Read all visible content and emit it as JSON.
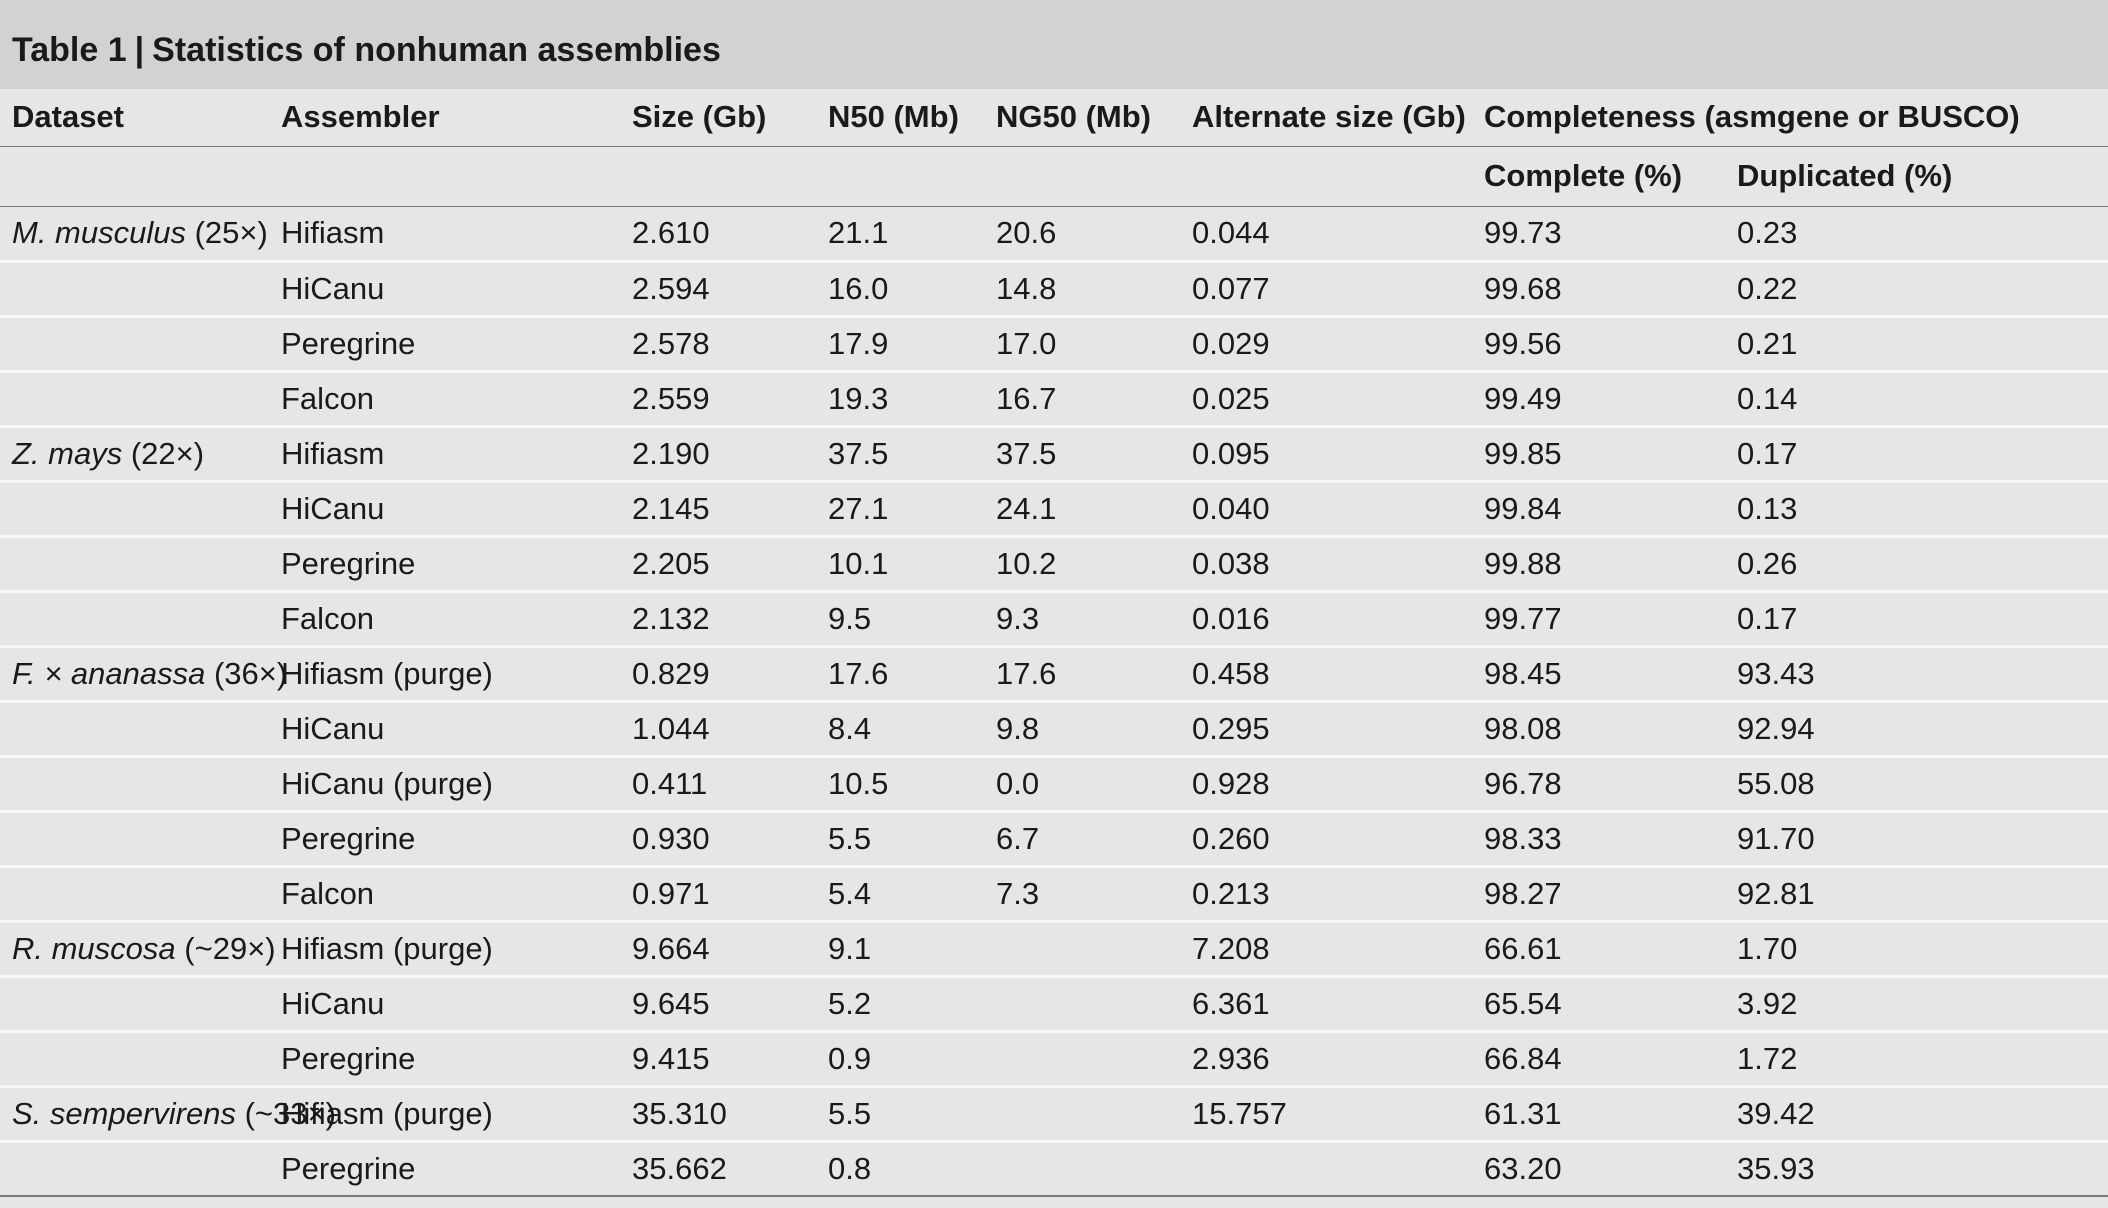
{
  "title": {
    "label": "Table 1",
    "separator": "|",
    "text": "Statistics of nonhuman assemblies"
  },
  "headers": {
    "dataset": "Dataset",
    "assembler": "Assembler",
    "size": "Size (Gb)",
    "n50": "N50 (Mb)",
    "ng50": "NG50 (Mb)",
    "alt_size": "Alternate size (Gb)",
    "completeness": "Completeness (asmgene or BUSCO)",
    "complete": "Complete (%)",
    "duplicated": "Duplicated (%)"
  },
  "rows": [
    {
      "species": "M. musculus",
      "cov": " (25×)",
      "assembler": "Hifiasm",
      "size": "2.610",
      "n50": "21.1",
      "ng50": "20.6",
      "alt": "0.044",
      "complete": "99.73",
      "dup": "0.23"
    },
    {
      "species": "",
      "cov": "",
      "assembler": "HiCanu",
      "size": "2.594",
      "n50": "16.0",
      "ng50": "14.8",
      "alt": "0.077",
      "complete": "99.68",
      "dup": "0.22"
    },
    {
      "species": "",
      "cov": "",
      "assembler": "Peregrine",
      "size": "2.578",
      "n50": "17.9",
      "ng50": "17.0",
      "alt": "0.029",
      "complete": "99.56",
      "dup": "0.21"
    },
    {
      "species": "",
      "cov": "",
      "assembler": "Falcon",
      "size": "2.559",
      "n50": "19.3",
      "ng50": "16.7",
      "alt": "0.025",
      "complete": "99.49",
      "dup": "0.14"
    },
    {
      "species": "Z. mays",
      "cov": " (22×)",
      "assembler": "Hifiasm",
      "size": "2.190",
      "n50": "37.5",
      "ng50": "37.5",
      "alt": "0.095",
      "complete": "99.85",
      "dup": "0.17"
    },
    {
      "species": "",
      "cov": "",
      "assembler": "HiCanu",
      "size": "2.145",
      "n50": "27.1",
      "ng50": "24.1",
      "alt": "0.040",
      "complete": "99.84",
      "dup": "0.13"
    },
    {
      "species": "",
      "cov": "",
      "assembler": "Peregrine",
      "size": "2.205",
      "n50": "10.1",
      "ng50": "10.2",
      "alt": "0.038",
      "complete": "99.88",
      "dup": "0.26"
    },
    {
      "species": "",
      "cov": "",
      "assembler": "Falcon",
      "size": "2.132",
      "n50": "9.5",
      "ng50": "9.3",
      "alt": "0.016",
      "complete": "99.77",
      "dup": "0.17"
    },
    {
      "species": "F. × ananassa",
      "cov": " (36×)",
      "assembler": "Hifiasm (purge)",
      "size": "0.829",
      "n50": "17.6",
      "ng50": "17.6",
      "alt": "0.458",
      "complete": "98.45",
      "dup": "93.43"
    },
    {
      "species": "",
      "cov": "",
      "assembler": "HiCanu",
      "size": "1.044",
      "n50": "8.4",
      "ng50": "9.8",
      "alt": "0.295",
      "complete": "98.08",
      "dup": "92.94"
    },
    {
      "species": "",
      "cov": "",
      "assembler": "HiCanu (purge)",
      "size": "0.411",
      "n50": "10.5",
      "ng50": "0.0",
      "alt": "0.928",
      "complete": "96.78",
      "dup": "55.08"
    },
    {
      "species": "",
      "cov": "",
      "assembler": "Peregrine",
      "size": "0.930",
      "n50": "5.5",
      "ng50": "6.7",
      "alt": "0.260",
      "complete": "98.33",
      "dup": "91.70"
    },
    {
      "species": "",
      "cov": "",
      "assembler": "Falcon",
      "size": "0.971",
      "n50": "5.4",
      "ng50": "7.3",
      "alt": "0.213",
      "complete": "98.27",
      "dup": "92.81"
    },
    {
      "species": "R. muscosa",
      "cov": " (~29×)",
      "assembler": "Hifiasm (purge)",
      "size": "9.664",
      "n50": "9.1",
      "ng50": "",
      "alt": "7.208",
      "complete": "66.61",
      "dup": "1.70"
    },
    {
      "species": "",
      "cov": "",
      "assembler": "HiCanu",
      "size": "9.645",
      "n50": "5.2",
      "ng50": "",
      "alt": "6.361",
      "complete": "65.54",
      "dup": "3.92"
    },
    {
      "species": "",
      "cov": "",
      "assembler": "Peregrine",
      "size": "9.415",
      "n50": "0.9",
      "ng50": "",
      "alt": "2.936",
      "complete": "66.84",
      "dup": "1.72"
    },
    {
      "species": "S. sempervirens",
      "cov": " (~33×)",
      "assembler": "Hifiasm (purge)",
      "size": "35.310",
      "n50": "5.5",
      "ng50": "",
      "alt": "15.757",
      "complete": "61.31",
      "dup": "39.42"
    },
    {
      "species": "",
      "cov": "",
      "assembler": "Peregrine",
      "size": "35.662",
      "n50": "0.8",
      "ng50": "",
      "alt": "",
      "complete": "63.20",
      "dup": "35.93"
    }
  ]
}
